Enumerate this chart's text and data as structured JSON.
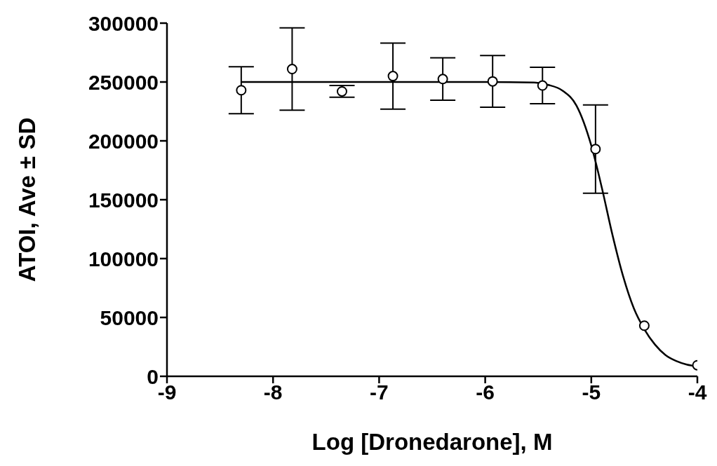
{
  "chart_data": {
    "type": "scatter",
    "xlabel": "Log [Dronedarone], M",
    "ylabel": "ATOI, Ave ± SD",
    "xlim": [
      -9,
      -4
    ],
    "xticks": [
      -9,
      -8,
      -7,
      -6,
      -5,
      -4
    ],
    "ylim": [
      0,
      300000
    ],
    "yticks": [
      0,
      50000,
      100000,
      150000,
      200000,
      250000,
      300000
    ],
    "grid": false,
    "legend": false,
    "marker": "circle",
    "series": [
      {
        "color": "#000000",
        "x": [
          -8.3,
          -7.82,
          -7.35,
          -6.87,
          -6.4,
          -5.93,
          -5.46,
          -4.96,
          -4.5,
          -4.0
        ],
        "values": [
          243000,
          261000,
          242000,
          255000,
          252500,
          250500,
          247000,
          193000,
          43000,
          9400
        ],
        "errors": [
          20000,
          35000,
          5000,
          28000,
          18000,
          22000,
          15500,
          37500,
          null,
          null
        ]
      },
      {
        "type": "line",
        "color": "#000000",
        "marker": "none",
        "x": [
          -8.3,
          -6,
          -5.54,
          -5.41,
          -5.27,
          -5.14,
          -5.0,
          -4.9,
          -4.8,
          -4.7,
          -4.6,
          -4.5,
          -4.4,
          -4.3,
          -4.2,
          -4.1,
          -4.0
        ],
        "values": [
          250000,
          250000,
          249500,
          247600,
          242600,
          230000,
          196000,
          160000,
          120000,
          85000,
          58000,
          40000,
          27000,
          18000,
          13000,
          10000,
          8500
        ]
      }
    ]
  }
}
